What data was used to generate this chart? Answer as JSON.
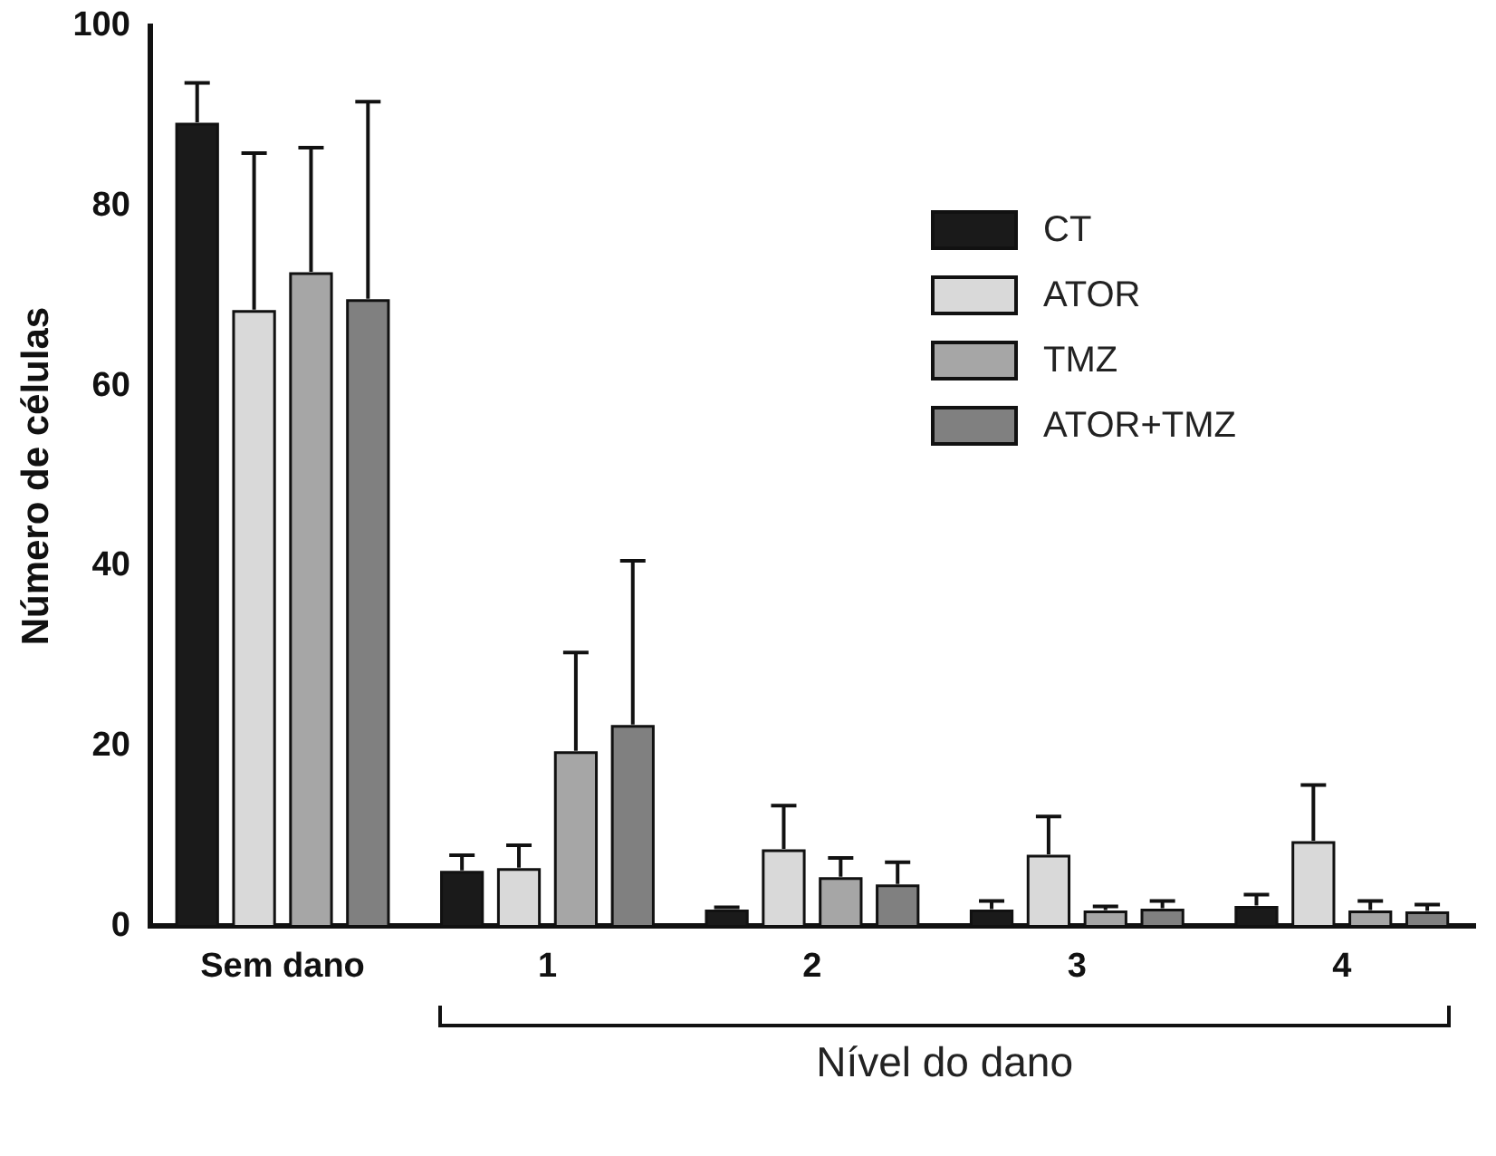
{
  "chart_data": {
    "type": "bar",
    "ylabel": "Número de células",
    "xlabel": "Nível do dano",
    "categories": [
      "Sem dano",
      "1",
      "2",
      "3",
      "4"
    ],
    "ylim": [
      0,
      100
    ],
    "yticks": [
      0,
      20,
      40,
      60,
      80,
      100
    ],
    "grid": false,
    "legend": "top right",
    "series": [
      {
        "name": "CT",
        "color": "#1a1a1a",
        "values": [
          89.1,
          6.0,
          1.7,
          1.7,
          2.1
        ],
        "errors": [
          [
            89.1,
            93.7
          ],
          [
            6.0,
            7.9
          ],
          [
            1.7,
            2.1
          ],
          [
            1.7,
            2.8
          ],
          [
            2.1,
            3.5
          ]
        ]
      },
      {
        "name": "ATOR",
        "color": "#d9d9d9",
        "values": [
          68.3,
          6.3,
          8.4,
          7.8,
          9.3
        ],
        "errors": [
          [
            68.3,
            85.9
          ],
          [
            6.3,
            9.0
          ],
          [
            8.4,
            13.4
          ],
          [
            7.8,
            12.2
          ],
          [
            9.3,
            15.7
          ]
        ]
      },
      {
        "name": "TMZ",
        "color": "#a6a6a6",
        "values": [
          72.5,
          19.3,
          5.3,
          1.6,
          1.6
        ],
        "errors": [
          [
            72.5,
            86.5
          ],
          [
            19.3,
            30.4
          ],
          [
            5.3,
            7.6
          ],
          [
            1.6,
            2.2
          ],
          [
            1.6,
            2.8
          ]
        ]
      },
      {
        "name": "ATOR+TMZ",
        "color": "#808080",
        "values": [
          69.5,
          22.2,
          4.5,
          1.8,
          1.5
        ],
        "errors": [
          [
            69.5,
            91.6
          ],
          [
            22.2,
            40.6
          ],
          [
            4.5,
            7.1
          ],
          [
            1.8,
            2.8
          ],
          [
            1.5,
            2.4
          ]
        ]
      }
    ]
  }
}
